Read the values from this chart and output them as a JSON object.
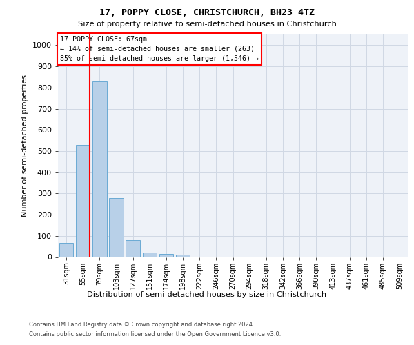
{
  "title1": "17, POPPY CLOSE, CHRISTCHURCH, BH23 4TZ",
  "title2": "Size of property relative to semi-detached houses in Christchurch",
  "xlabel": "Distribution of semi-detached houses by size in Christchurch",
  "ylabel": "Number of semi-detached properties",
  "footer1": "Contains HM Land Registry data © Crown copyright and database right 2024.",
  "footer2": "Contains public sector information licensed under the Open Government Licence v3.0.",
  "bar_labels": [
    "31sqm",
    "55sqm",
    "79sqm",
    "103sqm",
    "127sqm",
    "151sqm",
    "174sqm",
    "198sqm",
    "222sqm",
    "246sqm",
    "270sqm",
    "294sqm",
    "318sqm",
    "342sqm",
    "366sqm",
    "390sqm",
    "413sqm",
    "437sqm",
    "461sqm",
    "485sqm",
    "509sqm"
  ],
  "bar_values": [
    67,
    530,
    830,
    280,
    80,
    22,
    15,
    12,
    0,
    0,
    0,
    0,
    0,
    0,
    0,
    0,
    0,
    0,
    0,
    0,
    0
  ],
  "bar_color": "#b8d0e8",
  "bar_edge_color": "#6aaad4",
  "highlight_label": "17 POPPY CLOSE: 67sqm",
  "smaller_pct": "14%",
  "smaller_count": "263",
  "larger_pct": "85%",
  "larger_count": "1,546",
  "property_bin_index": 1,
  "ylim": [
    0,
    1050
  ],
  "yticks": [
    0,
    100,
    200,
    300,
    400,
    500,
    600,
    700,
    800,
    900,
    1000
  ],
  "grid_color": "#d0d8e4",
  "background_color": "#eef2f8"
}
